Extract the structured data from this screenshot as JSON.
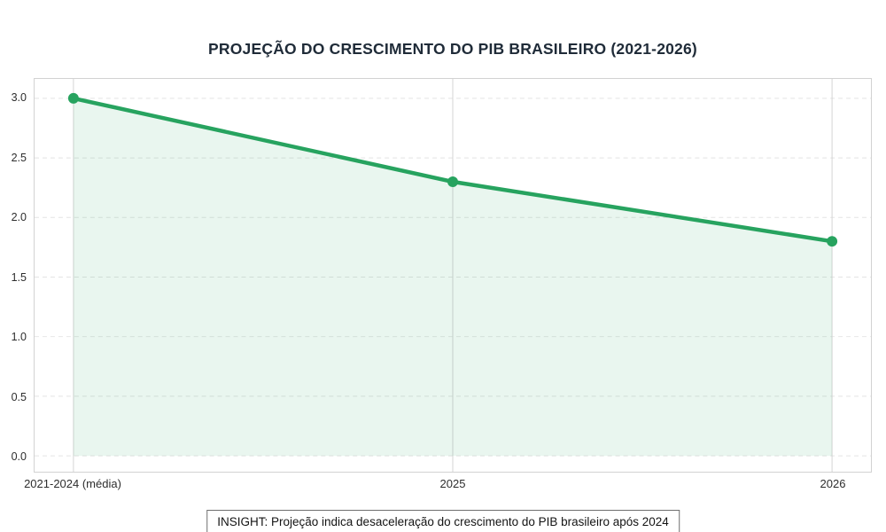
{
  "chart_data": {
    "type": "line",
    "title": "PROJEÇÃO DO CRESCIMENTO DO PIB BRASILEIRO (2021-2026)",
    "categories": [
      "2021-2024 (média)",
      "2025",
      "2026"
    ],
    "values": [
      3.0,
      2.3,
      1.8
    ],
    "y_ticks": [
      0,
      0.5,
      1,
      1.5,
      2,
      2.5,
      3
    ],
    "y_tick_labels": [
      "0.0",
      "0.5",
      "1.0",
      "1.5",
      "2.0",
      "2.5",
      "3.0"
    ],
    "ylim": [
      0,
      3.0
    ],
    "grid": true,
    "area_fill": true,
    "legend": "none",
    "annotation": "INSIGHT: Projeção indica desaceleração do crescimento do PIB brasileiro após 2024",
    "colors": {
      "line": "#27a35f",
      "marker": "#27a35f",
      "fill": "#27a35f",
      "fill_opacity": 0.1,
      "h_grid": "#e4e4e4",
      "v_grid": "#d4d4d4",
      "plot_border": "#d2d2d2",
      "title_text": "#1f2b38",
      "tick_text": "#2d2d2d",
      "insight_border": "#6e6e6e"
    }
  }
}
